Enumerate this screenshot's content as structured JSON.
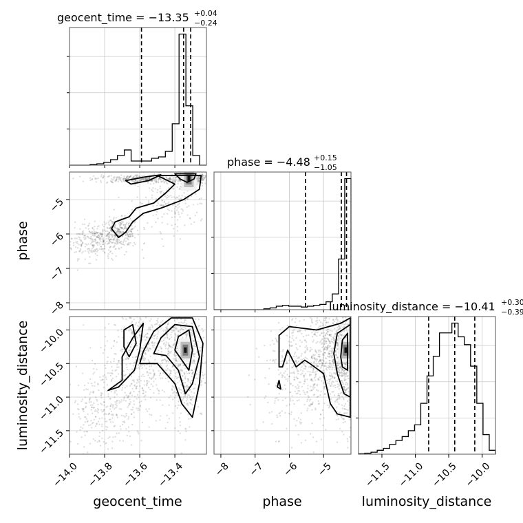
{
  "chart_data": {
    "type": "corner",
    "parameters": [
      {
        "key": "geocent_time",
        "label": "geocent_time",
        "title": "geocent_time = −13.35",
        "title_plus": "+0.04",
        "title_minus": "−0.24",
        "range": [
          -14.0,
          -13.22
        ],
        "ticks": [
          -14.0,
          -13.8,
          -13.6,
          -13.4
        ],
        "tick_labels": [
          "−14.0",
          "−13.8",
          "−13.6",
          "−13.4"
        ],
        "quantiles": [
          -13.59,
          -13.35,
          -13.31
        ],
        "histogram": [
          0,
          0,
          0,
          0.5,
          1,
          2,
          4,
          7,
          11,
          3,
          3,
          3,
          5,
          6,
          10,
          30,
          95,
          43,
          7,
          0
        ]
      },
      {
        "key": "phase",
        "label": "phase",
        "title": "phase = −4.48",
        "title_plus": "+0.15",
        "title_minus": "−1.05",
        "range": [
          -8.2,
          -4.2
        ],
        "ticks": [
          -8,
          -7,
          -6,
          -5
        ],
        "tick_labels": [
          "−8",
          "−7",
          "−6",
          "−5"
        ],
        "quantiles": [
          -5.53,
          -4.48,
          -4.33
        ],
        "histogram": [
          0,
          0,
          0,
          0,
          0,
          0,
          0,
          0,
          1,
          2,
          4,
          5,
          4,
          4,
          3,
          4,
          5,
          6,
          9,
          18,
          58,
          150
        ]
      },
      {
        "key": "luminosity_distance",
        "label": "luminosity_distance",
        "title": "luminosity_distance = −10.41",
        "title_plus": "+0.30",
        "title_minus": "−0.39",
        "range": [
          -11.85,
          -9.8
        ],
        "ticks": [
          -11.5,
          -11.0,
          -10.5,
          -10.0
        ],
        "tick_labels": [
          "−11.5",
          "−11.0",
          "−10.5",
          "−10.0"
        ],
        "quantiles": [
          -10.8,
          -10.41,
          -10.11
        ],
        "histogram": [
          0.2,
          0.5,
          1,
          2,
          3,
          5,
          7,
          9,
          12,
          15,
          26,
          40,
          50,
          62,
          62,
          67,
          60,
          56,
          45,
          26,
          10,
          2
        ]
      }
    ],
    "pairs": [
      {
        "x": "geocent_time",
        "y": "phase",
        "ylim": [
          -8.2,
          -4.2
        ],
        "cloud": [
          {
            "cx": -13.85,
            "cy": -6.2,
            "sx": 0.1,
            "sy": 0.25,
            "n": 300
          },
          {
            "cx": -13.72,
            "cy": -5.95,
            "sx": 0.06,
            "sy": 0.2,
            "n": 250
          },
          {
            "cx": -13.6,
            "cy": -4.4,
            "sx": 0.13,
            "sy": 0.06,
            "n": 300
          },
          {
            "cx": -13.42,
            "cy": -5.1,
            "sx": 0.1,
            "sy": 0.4,
            "n": 200
          },
          {
            "cx": -13.3,
            "cy": -4.4,
            "sx": 0.05,
            "sy": 0.08,
            "n": 300
          }
        ],
        "density_peak": [
          -13.32,
          -4.4
        ],
        "contours": [
          [
            [
              -13.4,
              -4.25
            ],
            [
              -13.37,
              -4.4
            ],
            [
              -13.33,
              -4.5
            ],
            [
              -13.29,
              -4.4
            ],
            [
              -13.28,
              -4.25
            ]
          ],
          [
            [
              -13.5,
              -4.3
            ],
            [
              -13.4,
              -4.55
            ],
            [
              -13.45,
              -4.8
            ],
            [
              -13.52,
              -5.1
            ],
            [
              -13.62,
              -5.25
            ],
            [
              -13.66,
              -5.5
            ],
            [
              -13.74,
              -5.65
            ],
            [
              -13.76,
              -5.85
            ],
            [
              -13.72,
              -6.1
            ],
            [
              -13.68,
              -5.95
            ],
            [
              -13.64,
              -5.65
            ],
            [
              -13.58,
              -5.4
            ],
            [
              -13.48,
              -5.25
            ],
            [
              -13.35,
              -5.0
            ],
            [
              -13.26,
              -4.7
            ],
            [
              -13.25,
              -4.3
            ]
          ],
          [
            [
              -13.68,
              -4.45
            ],
            [
              -13.58,
              -4.35
            ],
            [
              -13.48,
              -4.28
            ],
            [
              -13.55,
              -4.45
            ],
            [
              -13.65,
              -4.55
            ]
          ]
        ]
      },
      {
        "x": "geocent_time",
        "y": "luminosity_distance",
        "ylim": [
          -11.85,
          -9.8
        ],
        "cloud": [
          {
            "cx": -13.62,
            "cy": -10.5,
            "sx": 0.1,
            "sy": 0.45,
            "n": 450
          },
          {
            "cx": -13.82,
            "cy": -11.2,
            "sx": 0.1,
            "sy": 0.3,
            "n": 250
          },
          {
            "cx": -13.35,
            "cy": -10.5,
            "sx": 0.06,
            "sy": 0.45,
            "n": 450
          },
          {
            "cx": -13.45,
            "cy": -10.1,
            "sx": 0.1,
            "sy": 0.2,
            "n": 200
          }
        ],
        "density_peak": [
          -13.34,
          -10.3
        ],
        "contours": [
          [
            [
              -13.38,
              -10.1
            ],
            [
              -13.32,
              -10.0
            ],
            [
              -13.3,
              -10.3
            ],
            [
              -13.32,
              -10.6
            ],
            [
              -13.36,
              -10.45
            ],
            [
              -13.4,
              -10.3
            ]
          ],
          [
            [
              -13.48,
              -10.12
            ],
            [
              -13.4,
              -9.92
            ],
            [
              -13.3,
              -9.95
            ],
            [
              -13.26,
              -10.4
            ],
            [
              -13.3,
              -10.8
            ],
            [
              -13.34,
              -10.95
            ],
            [
              -13.38,
              -10.6
            ],
            [
              -13.45,
              -10.38
            ],
            [
              -13.52,
              -10.35
            ]
          ],
          [
            [
              -13.58,
              -10.32
            ],
            [
              -13.52,
              -10.02
            ],
            [
              -13.42,
              -9.82
            ],
            [
              -13.3,
              -9.82
            ],
            [
              -13.24,
              -10.2
            ],
            [
              -13.26,
              -10.8
            ],
            [
              -13.3,
              -11.3
            ],
            [
              -13.36,
              -11.1
            ],
            [
              -13.4,
              -10.8
            ],
            [
              -13.5,
              -10.5
            ],
            [
              -13.6,
              -10.5
            ]
          ],
          [
            [
              -13.69,
              -10.0
            ],
            [
              -13.64,
              -9.92
            ],
            [
              -13.62,
              -10.2
            ],
            [
              -13.66,
              -10.4
            ],
            [
              -13.69,
              -10.25
            ]
          ],
          [
            [
              -13.78,
              -10.9
            ],
            [
              -13.7,
              -10.75
            ],
            [
              -13.7,
              -10.4
            ],
            [
              -13.64,
              -10.12
            ],
            [
              -13.58,
              -9.9
            ],
            [
              -13.6,
              -10.3
            ],
            [
              -13.63,
              -10.6
            ],
            [
              -13.72,
              -10.85
            ]
          ]
        ]
      },
      {
        "x": "phase",
        "y": "luminosity_distance",
        "ylim": [
          -11.85,
          -9.8
        ],
        "cloud": [
          {
            "cx": -5.5,
            "cy": -10.6,
            "sx": 0.6,
            "sy": 0.45,
            "n": 550
          },
          {
            "cx": -4.7,
            "cy": -10.3,
            "sx": 0.3,
            "sy": 0.3,
            "n": 400
          },
          {
            "cx": -4.4,
            "cy": -10.5,
            "sx": 0.15,
            "sy": 0.5,
            "n": 300
          }
        ],
        "density_peak": [
          -4.35,
          -10.3
        ],
        "contours": [
          [
            [
              -4.3,
              -10.05
            ],
            [
              -4.45,
              -10.15
            ],
            [
              -4.5,
              -10.4
            ],
            [
              -4.45,
              -10.55
            ],
            [
              -4.3,
              -10.6
            ]
          ],
          [
            [
              -4.22,
              -9.92
            ],
            [
              -4.6,
              -10.05
            ],
            [
              -4.7,
              -10.35
            ],
            [
              -4.6,
              -10.65
            ],
            [
              -4.4,
              -10.95
            ],
            [
              -4.22,
              -11.0
            ]
          ],
          [
            [
              -4.22,
              -9.82
            ],
            [
              -4.5,
              -9.9
            ],
            [
              -5.2,
              -10.0
            ],
            [
              -6.0,
              -9.95
            ],
            [
              -6.3,
              -10.08
            ],
            [
              -6.3,
              -10.55
            ],
            [
              -6.2,
              -10.55
            ],
            [
              -6.05,
              -10.3
            ],
            [
              -5.8,
              -10.55
            ],
            [
              -5.55,
              -10.45
            ],
            [
              -5.4,
              -10.5
            ],
            [
              -5.0,
              -10.65
            ],
            [
              -4.8,
              -11.1
            ],
            [
              -4.6,
              -11.25
            ],
            [
              -4.22,
              -11.3
            ]
          ],
          [
            [
              -6.35,
              -10.85
            ],
            [
              -6.3,
              -10.75
            ],
            [
              -6.25,
              -10.88
            ]
          ]
        ]
      }
    ]
  }
}
